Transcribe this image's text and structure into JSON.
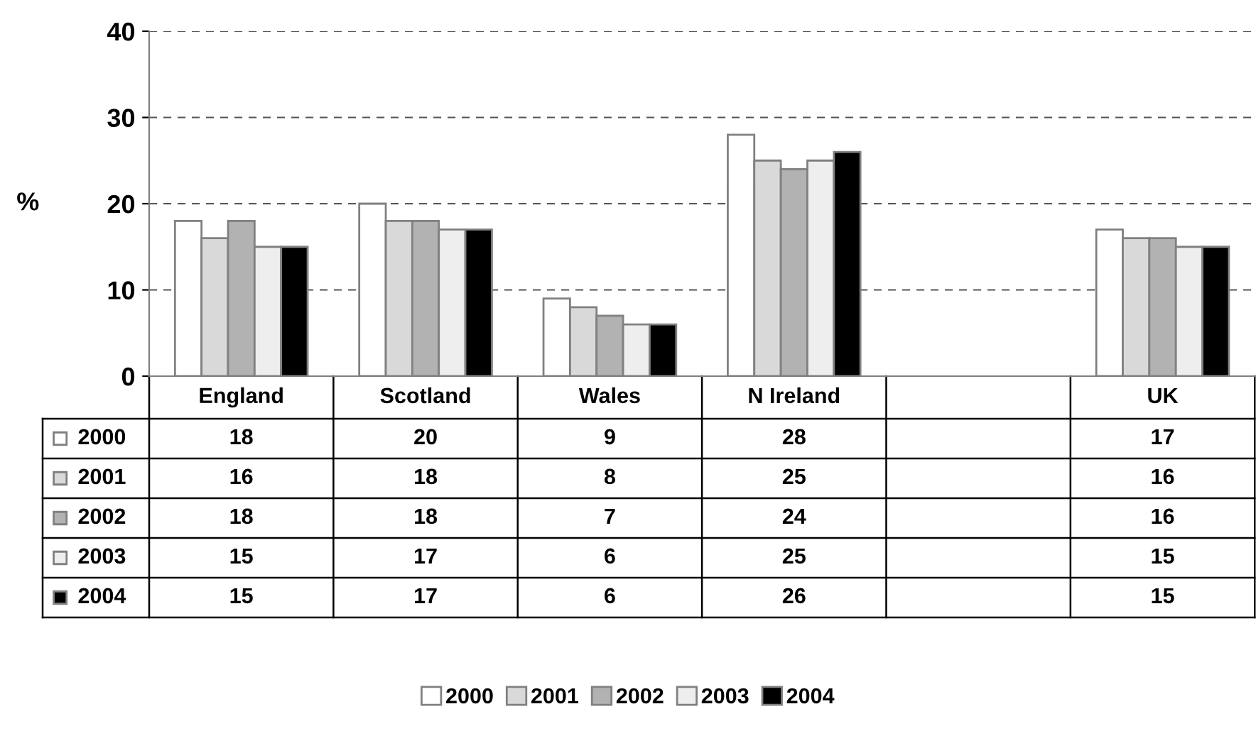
{
  "chart_data": {
    "type": "bar",
    "ylabel": "%",
    "categories": [
      "England",
      "Scotland",
      "Wales",
      "N Ireland",
      null,
      "UK"
    ],
    "series": [
      {
        "name": "2000",
        "color": "#ffffff",
        "values": [
          18,
          20,
          9,
          28,
          null,
          17
        ]
      },
      {
        "name": "2001",
        "color": "#d9d9d9",
        "values": [
          16,
          18,
          8,
          25,
          null,
          16
        ]
      },
      {
        "name": "2002",
        "color": "#b2b2b2",
        "values": [
          18,
          18,
          7,
          24,
          null,
          16
        ]
      },
      {
        "name": "2003",
        "color": "#eeeeee",
        "values": [
          15,
          17,
          6,
          25,
          null,
          15
        ]
      },
      {
        "name": "2004",
        "color": "#000000",
        "values": [
          15,
          17,
          6,
          26,
          null,
          15
        ]
      }
    ],
    "ylim": [
      0,
      40
    ],
    "yticks": [
      0,
      10,
      20,
      30,
      40
    ],
    "grid": "y",
    "data_labels": true,
    "legend": "bottom"
  }
}
